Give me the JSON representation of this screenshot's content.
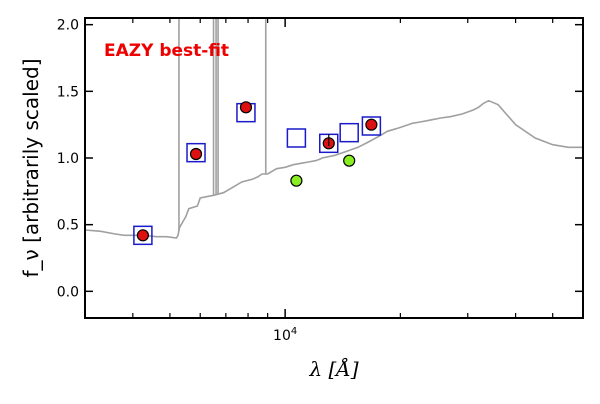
{
  "chart_data": {
    "type": "scatter",
    "title": "",
    "annotation": "EAZY best-fit",
    "xlabel": "λ [Å]",
    "ylabel": "f_ν [arbitrarily scaled]",
    "xscale": "log",
    "xlim": [
      3000,
      60000
    ],
    "ylim": [
      -0.2,
      2.05
    ],
    "x_tick_labels": [
      {
        "value": 10000,
        "label": "10^4"
      }
    ],
    "y_ticks": [
      0.0,
      0.5,
      1.0,
      1.5,
      2.0
    ],
    "y_tick_labels": [
      "0.0",
      "0.5",
      "1.0",
      "1.5",
      "2.0"
    ],
    "grid": false,
    "colors": {
      "model": "#a0a0a0",
      "observed": "#dd1111",
      "squares": "#1a1acc",
      "green": "#88ee22",
      "annotation": "#ee0000"
    },
    "series": [
      {
        "kind": "line",
        "x": [
          3000,
          3300,
          3600,
          3800,
          4000,
          4300,
          4600,
          4900,
          5200,
          5250,
          5300,
          5400,
          5500,
          5600,
          5900,
          6000,
          6500,
          6900,
          7300,
          7700,
          8200,
          8500,
          8700,
          9000,
          9500,
          10000,
          10500,
          11000,
          11500,
          12000,
          12300,
          12500,
          13500,
          14500,
          15500,
          16500,
          17500,
          18500,
          19500,
          20500,
          21500,
          22500,
          23500,
          24500,
          25500,
          27000,
          29000,
          31000,
          32000,
          33000,
          34000,
          36000,
          40000,
          45000,
          50000,
          55000,
          60000
        ],
        "y": [
          0.46,
          0.45,
          0.43,
          0.42,
          0.42,
          0.42,
          0.41,
          0.41,
          0.4,
          0.42,
          0.48,
          0.52,
          0.56,
          0.62,
          0.64,
          0.7,
          0.72,
          0.74,
          0.78,
          0.82,
          0.84,
          0.86,
          0.88,
          0.88,
          0.92,
          0.93,
          0.95,
          0.96,
          0.97,
          0.98,
          0.99,
          1.0,
          1.02,
          1.05,
          1.08,
          1.12,
          1.16,
          1.2,
          1.22,
          1.24,
          1.26,
          1.27,
          1.28,
          1.29,
          1.3,
          1.31,
          1.33,
          1.36,
          1.38,
          1.41,
          1.43,
          1.4,
          1.25,
          1.15,
          1.1,
          1.08,
          1.08
        ]
      },
      {
        "kind": "emission_lines",
        "x": [
          5280,
          6500,
          6600,
          6680,
          8900
        ],
        "y_top": [
          2.05,
          2.05,
          2.05,
          2.05,
          2.05
        ]
      },
      {
        "kind": "open_squares",
        "x": [
          4250,
          5850,
          7900,
          10700,
          13000,
          14700,
          16800
        ],
        "y": [
          0.42,
          1.04,
          1.34,
          1.15,
          1.11,
          1.19,
          1.24
        ]
      },
      {
        "kind": "filled_circles_red",
        "x": [
          4250,
          5850,
          7900,
          13000,
          16800
        ],
        "y": [
          0.42,
          1.03,
          1.38,
          1.11,
          1.25
        ]
      },
      {
        "kind": "filled_circles_green",
        "x": [
          10700,
          14700
        ],
        "y": [
          0.83,
          0.98
        ]
      }
    ]
  }
}
